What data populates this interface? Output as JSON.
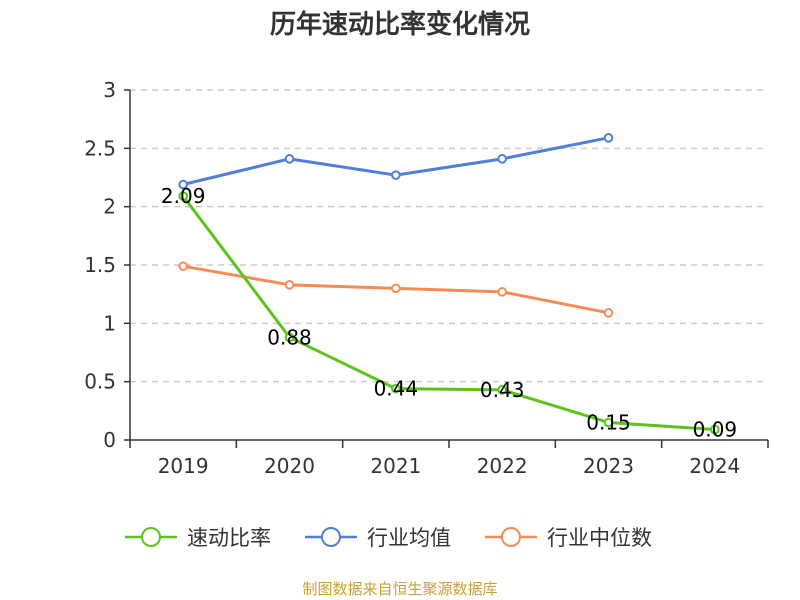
{
  "chart_data": {
    "type": "line",
    "title": "历年速动比率变化情况",
    "categories": [
      "2019",
      "2020",
      "2021",
      "2022",
      "2023",
      "2024"
    ],
    "ylim": [
      0,
      3
    ],
    "yticks": [
      "0",
      "0.5",
      "1",
      "1.5",
      "2",
      "2.5",
      "3"
    ],
    "ytick_values": [
      0,
      0.5,
      1,
      1.5,
      2,
      2.5,
      3
    ],
    "grid": true,
    "legend_position": "bottom",
    "series": [
      {
        "name": "速动比率",
        "color": "#5cc31c",
        "values": [
          2.09,
          0.88,
          0.44,
          0.43,
          0.15,
          0.09
        ],
        "labels": [
          "2.09",
          "0.88",
          "0.44",
          "0.43",
          "0.15",
          "0.09"
        ]
      },
      {
        "name": "行业均值",
        "color": "#4f7fd6",
        "values": [
          2.19,
          2.41,
          2.27,
          2.41,
          2.59,
          null
        ]
      },
      {
        "name": "行业中位数",
        "color": "#f68b55",
        "values": [
          1.49,
          1.33,
          1.3,
          1.27,
          1.09,
          null
        ]
      }
    ],
    "source": "制图数据来自恒生聚源数据库",
    "source_color": "#c8a036",
    "axis_color": "#333333",
    "grid_color": "#cccccc"
  }
}
